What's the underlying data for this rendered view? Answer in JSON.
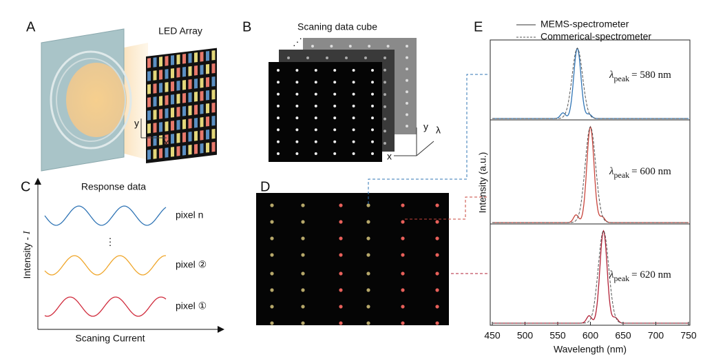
{
  "panels": {
    "a": {
      "letter": "A",
      "led_label": "LED Array",
      "axis_y": "y",
      "axis_x": "x"
    },
    "b": {
      "letter": "B",
      "title": "Scaning data cube",
      "axis_y": "y",
      "axis_l": "λ",
      "axis_x": "x",
      "dots": "⋰"
    },
    "c": {
      "letter": "C",
      "title": "Response data",
      "y_label": "Intensity - ",
      "y_symbol": "I",
      "x_label": "Scaning Current",
      "pixels": [
        "pixel n",
        "pixel ②",
        "pixel ①"
      ],
      "ellipsis": "⋮"
    },
    "d": {
      "letter": "D"
    },
    "e": {
      "letter": "E",
      "legend": [
        "MEMS-spectrometer",
        "Commerical-spectrometer"
      ],
      "y_label": "Intensity (a.u.)",
      "x_label": "Wavelength (nm)",
      "xlim": [
        450,
        750
      ],
      "xticks": [
        450,
        500,
        550,
        600,
        650,
        700,
        750
      ],
      "spectra": [
        {
          "symbol": "λ",
          "subscript": "peak",
          "label": "= 580 nm",
          "peak": 580,
          "color": "#2f74b5"
        },
        {
          "symbol": "λ",
          "subscript": "peak",
          "label": "= 600 nm",
          "peak": 600,
          "color": "#c8443b"
        },
        {
          "symbol": "λ",
          "subscript": "peak",
          "label": "= 620 nm",
          "peak": 620,
          "color": "#b21f35"
        }
      ]
    }
  }
}
